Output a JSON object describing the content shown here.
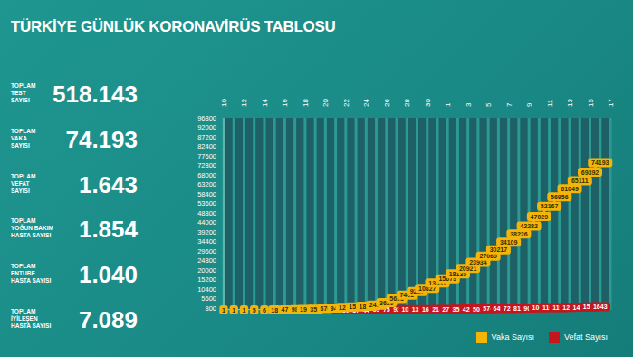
{
  "header": {
    "title": "TÜRKİYE GÜNLÜK KORONAVİRÜS TABLOSU"
  },
  "stats": [
    {
      "label": [
        "TOPLAM",
        "TEST",
        "SAYISI"
      ],
      "value": "518.143"
    },
    {
      "label": [
        "TOPLAM",
        "VAKA",
        "SAYISI"
      ],
      "value": "74.193"
    },
    {
      "label": [
        "TOPLAM",
        "VEFAT",
        "SAYISI"
      ],
      "value": "1.643"
    },
    {
      "label": [
        "TOPLAM",
        "YOĞUN BAKIM",
        "HASTA SAYISI"
      ],
      "value": "1.854"
    },
    {
      "label": [
        "TOPLAM",
        "ENTUBE",
        "HASTA SAYISI"
      ],
      "value": "1.040"
    },
    {
      "label": [
        "TOPLAM",
        "İYİLEŞEN",
        "HASTA SAYISI"
      ],
      "value": "7.089"
    }
  ],
  "chart_data": {
    "type": "line",
    "categories": [
      "10",
      null,
      "12",
      null,
      "14",
      null,
      "16",
      null,
      "18",
      null,
      "20",
      null,
      "22",
      null,
      "24",
      null,
      "26",
      null,
      "28",
      null,
      "30",
      null,
      "1",
      null,
      "3",
      null,
      "5",
      null,
      "7",
      null,
      "9",
      null,
      "11",
      null,
      "13",
      null,
      "15",
      null,
      "17"
    ],
    "series": [
      {
        "name": "Vaka Sayısı",
        "color": "#f4b50a",
        "values": [
          1,
          1,
          1,
          5,
          6,
          18,
          47,
          98,
          191,
          359,
          670,
          947,
          1236,
          1529,
          1872,
          2433,
          3629,
          5698,
          7402,
          9217,
          10827,
          13531,
          15679,
          18135,
          20921,
          23934,
          27069,
          30217,
          34109,
          38226,
          42282,
          47029,
          52167,
          56956,
          61049,
          65111,
          69392,
          74193,
          null
        ]
      },
      {
        "name": "Vefat Sayısı",
        "color": "#c4161c",
        "values": [
          null,
          null,
          null,
          null,
          null,
          null,
          null,
          1,
          2,
          3,
          9,
          21,
          30,
          37,
          44,
          59,
          75,
          92,
          108,
          131,
          168,
          214,
          277,
          356,
          425,
          501,
          574,
          649,
          725,
          812,
          908,
          1006,
          1101,
          1198,
          1296,
          1403,
          1518,
          1643,
          null
        ]
      }
    ],
    "ylim": [
      0,
      96800
    ],
    "yticks": [
      800,
      5600,
      10400,
      15200,
      20000,
      24800,
      29600,
      34400,
      39200,
      44000,
      48800,
      53600,
      58400,
      63200,
      68000,
      72800,
      77600,
      82400,
      87200,
      92000,
      96800
    ],
    "grid": true,
    "data_labels": true,
    "legend": "bottom-right"
  }
}
